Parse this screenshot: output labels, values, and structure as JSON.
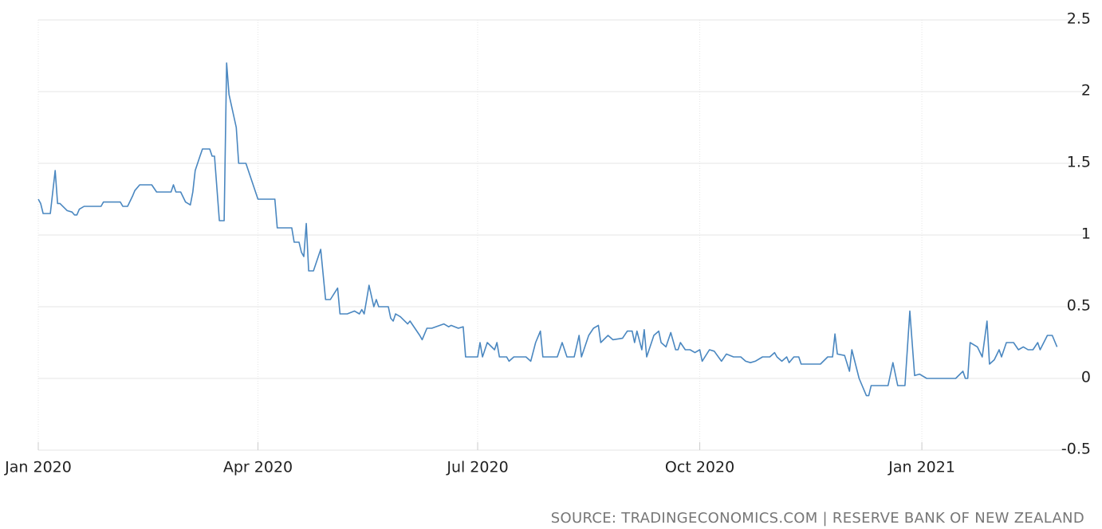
{
  "chart_data": {
    "type": "line",
    "source": "SOURCE: TRADINGECONOMICS.COM | RESERVE BANK OF NEW ZEALAND",
    "x": [
      0,
      1,
      2,
      5,
      7,
      8,
      9,
      12,
      14,
      15,
      16,
      17,
      19,
      26,
      27,
      34,
      35,
      37,
      39,
      40,
      42,
      47,
      49,
      55,
      56,
      57,
      59,
      61,
      63,
      64,
      65,
      67,
      68,
      71,
      72,
      73,
      75,
      77,
      78,
      79,
      82,
      83,
      86,
      91,
      98,
      99,
      105,
      106,
      108,
      109,
      110,
      111,
      112,
      114,
      117,
      119,
      121,
      124,
      125,
      128,
      131,
      133,
      134,
      135,
      136,
      137,
      139,
      140,
      141,
      145,
      146,
      147,
      148,
      150,
      153,
      154,
      156,
      158,
      159,
      161,
      163,
      168,
      170,
      171,
      174,
      176,
      177,
      182,
      183,
      184,
      186,
      189,
      190,
      191,
      194,
      195,
      197,
      202,
      204,
      206,
      208,
      209,
      215,
      217,
      219,
      222,
      224,
      225,
      228,
      230,
      232,
      233,
      236,
      238,
      242,
      244,
      246,
      247,
      248,
      250,
      251,
      252,
      254,
      255,
      257,
      258,
      260,
      262,
      264,
      265,
      266,
      268,
      270,
      272,
      274,
      275,
      278,
      280,
      283,
      285,
      288,
      291,
      293,
      295,
      297,
      300,
      303,
      305,
      306,
      308,
      310,
      311,
      313,
      315,
      316,
      324,
      327,
      329,
      330,
      331,
      334,
      336,
      337,
      340,
      343,
      344,
      345,
      352,
      354,
      356,
      359,
      361,
      363,
      365,
      368,
      380,
      383,
      384,
      385,
      386,
      389,
      391,
      393,
      394,
      396,
      398,
      399,
      401,
      404,
      406,
      408,
      410,
      412,
      414,
      415,
      418,
      420,
      422
    ],
    "values": [
      1.25,
      1.22,
      1.15,
      1.15,
      1.45,
      1.22,
      1.22,
      1.17,
      1.16,
      1.14,
      1.14,
      1.18,
      1.2,
      1.2,
      1.23,
      1.23,
      1.2,
      1.2,
      1.27,
      1.31,
      1.35,
      1.35,
      1.3,
      1.3,
      1.35,
      1.3,
      1.3,
      1.23,
      1.21,
      1.3,
      1.45,
      1.55,
      1.6,
      1.6,
      1.55,
      1.55,
      1.1,
      1.1,
      2.2,
      1.98,
      1.75,
      1.5,
      1.5,
      1.25,
      1.25,
      1.05,
      1.05,
      0.95,
      0.95,
      0.88,
      0.85,
      1.08,
      0.75,
      0.75,
      0.9,
      0.55,
      0.55,
      0.63,
      0.45,
      0.45,
      0.47,
      0.45,
      0.48,
      0.45,
      0.55,
      0.65,
      0.5,
      0.55,
      0.5,
      0.5,
      0.42,
      0.4,
      0.45,
      0.43,
      0.38,
      0.4,
      0.35,
      0.3,
      0.27,
      0.35,
      0.35,
      0.38,
      0.36,
      0.37,
      0.35,
      0.36,
      0.15,
      0.15,
      0.25,
      0.15,
      0.25,
      0.2,
      0.25,
      0.15,
      0.15,
      0.12,
      0.15,
      0.15,
      0.12,
      0.25,
      0.33,
      0.15,
      0.15,
      0.25,
      0.15,
      0.15,
      0.3,
      0.15,
      0.3,
      0.35,
      0.37,
      0.25,
      0.3,
      0.27,
      0.28,
      0.33,
      0.33,
      0.25,
      0.33,
      0.2,
      0.34,
      0.15,
      0.25,
      0.3,
      0.33,
      0.25,
      0.22,
      0.32,
      0.2,
      0.2,
      0.25,
      0.2,
      0.2,
      0.18,
      0.2,
      0.12,
      0.2,
      0.19,
      0.12,
      0.17,
      0.15,
      0.15,
      0.12,
      0.11,
      0.12,
      0.15,
      0.15,
      0.18,
      0.15,
      0.12,
      0.15,
      0.11,
      0.15,
      0.15,
      0.1,
      0.1,
      0.15,
      0.15,
      0.31,
      0.17,
      0.16,
      0.05,
      0.2,
      0,
      -0.12,
      -0.12,
      -0.05,
      -0.05,
      0.11,
      -0.05,
      -0.05,
      0.47,
      0.02,
      0.03,
      0,
      0,
      0.05,
      0,
      0,
      0.25,
      0.22,
      0.15,
      0.4,
      0.1,
      0.13,
      0.2,
      0.15,
      0.25,
      0.25,
      0.2,
      0.22,
      0.2,
      0.2,
      0.25,
      0.2,
      0.3,
      0.3,
      0.22
    ],
    "color": "#4a87c0",
    "xlim": [
      0,
      435
    ],
    "xticks": [
      {
        "value": 0,
        "label": "Jan 2020"
      },
      {
        "value": 91,
        "label": "Apr 2020"
      },
      {
        "value": 182,
        "label": "Jul 2020"
      },
      {
        "value": 274,
        "label": "Oct 2020"
      },
      {
        "value": 366,
        "label": "Jan 2021"
      }
    ],
    "ylim": [
      -0.5,
      2.5
    ],
    "yticks": [
      -0.5,
      0,
      0.5,
      1,
      1.5,
      2,
      2.5
    ],
    "grid": true
  }
}
